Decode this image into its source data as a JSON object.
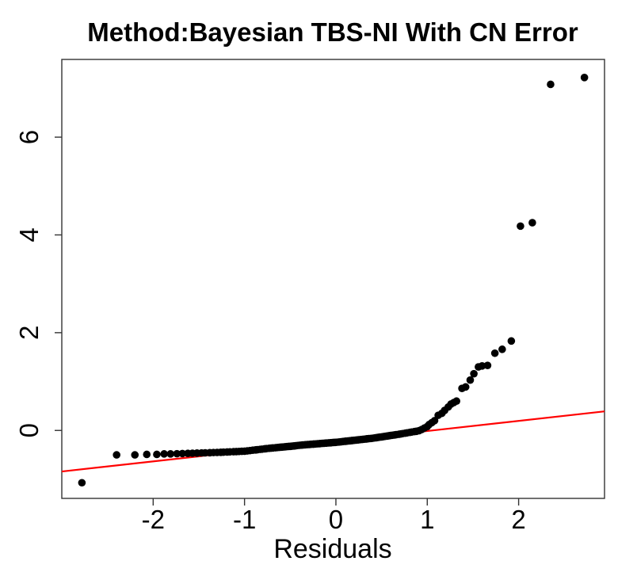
{
  "page": {
    "background": "#ffffff"
  },
  "chart_data": {
    "type": "scatter",
    "title": "Method:Bayesian TBS-NI With CN Error",
    "xlabel": "Residuals",
    "ylabel": "",
    "xlim": [
      -3.0,
      2.94
    ],
    "ylim": [
      -1.39,
      7.59
    ],
    "x_ticks": [
      -2,
      -1,
      0,
      1,
      2
    ],
    "y_ticks": [
      0,
      2,
      4,
      6
    ],
    "grid": false,
    "legend_position": "none",
    "point_color": "#000000",
    "axis_color": "#333333",
    "ref_line": {
      "x1": -3.0,
      "y1": -0.84,
      "x2": 2.94,
      "y2": 0.39,
      "color": "#ff0000"
    },
    "points": [
      [
        -2.78,
        -1.07
      ],
      [
        -2.4,
        -0.5
      ],
      [
        -2.2,
        -0.5
      ],
      [
        -2.07,
        -0.49
      ],
      [
        -1.96,
        -0.49
      ],
      [
        -1.88,
        -0.48
      ],
      [
        -1.81,
        -0.48
      ],
      [
        -1.74,
        -0.476
      ],
      [
        -1.68,
        -0.472
      ],
      [
        -1.62,
        -0.469
      ],
      [
        -1.57,
        -0.466
      ],
      [
        -1.52,
        -0.463
      ],
      [
        -1.47,
        -0.46
      ],
      [
        -1.43,
        -0.458
      ],
      [
        -1.38,
        -0.455
      ],
      [
        -1.34,
        -0.452
      ],
      [
        -1.3,
        -0.45
      ],
      [
        -1.26,
        -0.447
      ],
      [
        -1.23,
        -0.444
      ],
      [
        -1.19,
        -0.441
      ],
      [
        -1.16,
        -0.438
      ],
      [
        -1.12,
        -0.435
      ],
      [
        -1.09,
        -0.432
      ],
      [
        -1.06,
        -0.43
      ],
      [
        -1.03,
        -0.427
      ],
      [
        -1.0,
        -0.425
      ],
      [
        -0.97,
        -0.418
      ],
      [
        -0.94,
        -0.412
      ],
      [
        -0.91,
        -0.405
      ],
      [
        -0.88,
        -0.398
      ],
      [
        -0.86,
        -0.394
      ],
      [
        -0.83,
        -0.387
      ],
      [
        -0.81,
        -0.383
      ],
      [
        -0.78,
        -0.376
      ],
      [
        -0.76,
        -0.372
      ],
      [
        -0.73,
        -0.365
      ],
      [
        -0.71,
        -0.362
      ],
      [
        -0.69,
        -0.358
      ],
      [
        -0.66,
        -0.353
      ],
      [
        -0.64,
        -0.349
      ],
      [
        -0.62,
        -0.346
      ],
      [
        -0.6,
        -0.342
      ],
      [
        -0.58,
        -0.339
      ],
      [
        -0.56,
        -0.335
      ],
      [
        -0.54,
        -0.332
      ],
      [
        -0.52,
        -0.328
      ],
      [
        -0.5,
        -0.325
      ],
      [
        -0.48,
        -0.321
      ],
      [
        -0.46,
        -0.317
      ],
      [
        -0.44,
        -0.313
      ],
      [
        -0.42,
        -0.308
      ],
      [
        -0.4,
        -0.304
      ],
      [
        -0.38,
        -0.3
      ],
      [
        -0.36,
        -0.297
      ],
      [
        -0.34,
        -0.294
      ],
      [
        -0.33,
        -0.292
      ],
      [
        -0.31,
        -0.289
      ],
      [
        -0.29,
        -0.286
      ],
      [
        -0.27,
        -0.283
      ],
      [
        -0.25,
        -0.28
      ],
      [
        -0.24,
        -0.279
      ],
      [
        -0.22,
        -0.276
      ],
      [
        -0.2,
        -0.273
      ],
      [
        -0.18,
        -0.27
      ],
      [
        -0.17,
        -0.268
      ],
      [
        -0.15,
        -0.265
      ],
      [
        -0.13,
        -0.262
      ],
      [
        -0.11,
        -0.259
      ],
      [
        -0.1,
        -0.258
      ],
      [
        -0.08,
        -0.255
      ],
      [
        -0.06,
        -0.252
      ],
      [
        -0.05,
        -0.25
      ],
      [
        -0.03,
        -0.247
      ],
      [
        -0.01,
        -0.244
      ],
      [
        0.01,
        -0.241
      ],
      [
        0.03,
        -0.237
      ],
      [
        0.05,
        -0.233
      ],
      [
        0.06,
        -0.231
      ],
      [
        0.08,
        -0.226
      ],
      [
        0.1,
        -0.222
      ],
      [
        0.11,
        -0.22
      ],
      [
        0.13,
        -0.216
      ],
      [
        0.15,
        -0.212
      ],
      [
        0.17,
        -0.208
      ],
      [
        0.18,
        -0.206
      ],
      [
        0.2,
        -0.202
      ],
      [
        0.22,
        -0.197
      ],
      [
        0.24,
        -0.193
      ],
      [
        0.25,
        -0.191
      ],
      [
        0.27,
        -0.187
      ],
      [
        0.29,
        -0.183
      ],
      [
        0.31,
        -0.179
      ],
      [
        0.33,
        -0.175
      ],
      [
        0.34,
        -0.172
      ],
      [
        0.36,
        -0.168
      ],
      [
        0.38,
        -0.164
      ],
      [
        0.4,
        -0.16
      ],
      [
        0.42,
        -0.154
      ],
      [
        0.44,
        -0.149
      ],
      [
        0.46,
        -0.143
      ],
      [
        0.48,
        -0.137
      ],
      [
        0.5,
        -0.132
      ],
      [
        0.52,
        -0.126
      ],
      [
        0.54,
        -0.12
      ],
      [
        0.56,
        -0.115
      ],
      [
        0.58,
        -0.109
      ],
      [
        0.6,
        -0.103
      ],
      [
        0.62,
        -0.098
      ],
      [
        0.64,
        -0.092
      ],
      [
        0.66,
        -0.086
      ],
      [
        0.69,
        -0.078
      ],
      [
        0.71,
        -0.072
      ],
      [
        0.73,
        -0.065
      ],
      [
        0.76,
        -0.056
      ],
      [
        0.78,
        -0.049
      ],
      [
        0.81,
        -0.039
      ],
      [
        0.83,
        -0.033
      ],
      [
        0.86,
        -0.023
      ],
      [
        0.88,
        -0.017
      ],
      [
        0.91,
        -0.005
      ],
      [
        0.94,
        0.02
      ],
      [
        0.97,
        0.05
      ],
      [
        1.0,
        0.08
      ],
      [
        1.02,
        0.12
      ],
      [
        1.05,
        0.16
      ],
      [
        1.08,
        0.2
      ],
      [
        1.12,
        0.31
      ],
      [
        1.16,
        0.35
      ],
      [
        1.19,
        0.41
      ],
      [
        1.23,
        0.48
      ],
      [
        1.26,
        0.54
      ],
      [
        1.29,
        0.57
      ],
      [
        1.32,
        0.6
      ],
      [
        1.38,
        0.86
      ],
      [
        1.42,
        0.89
      ],
      [
        1.47,
        1.03
      ],
      [
        1.51,
        1.16
      ],
      [
        1.56,
        1.3
      ],
      [
        1.6,
        1.32
      ],
      [
        1.66,
        1.33
      ],
      [
        1.74,
        1.58
      ],
      [
        1.82,
        1.66
      ],
      [
        1.92,
        1.83
      ],
      [
        2.02,
        4.18
      ],
      [
        2.15,
        4.25
      ],
      [
        2.35,
        7.08
      ],
      [
        2.72,
        7.22
      ]
    ]
  }
}
